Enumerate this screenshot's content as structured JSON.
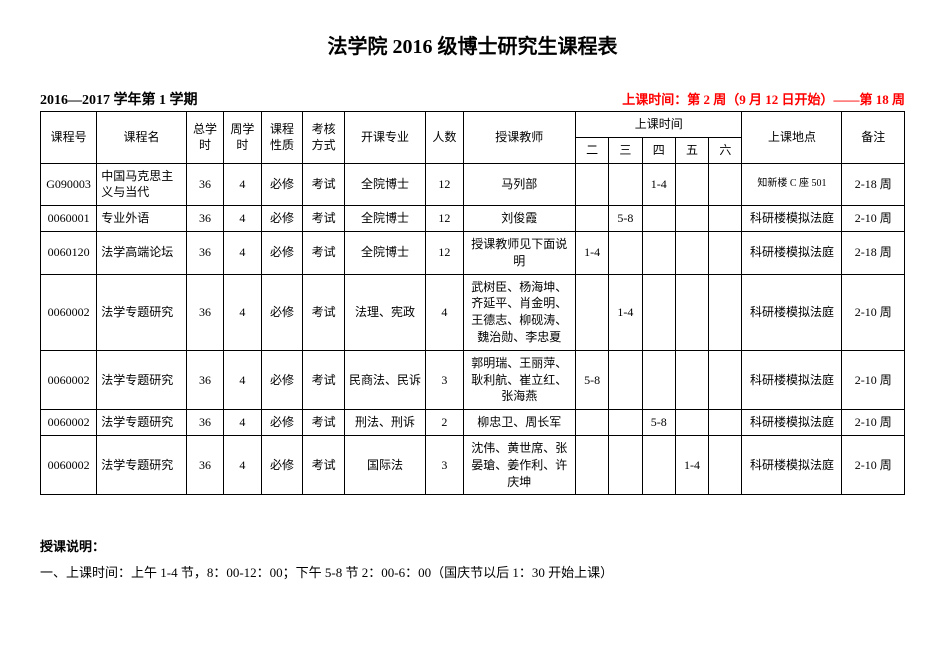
{
  "title": "法学院 2016 级博士研究生课程表",
  "semester": "2016—2017 学年第 1 学期",
  "period": "上课时间：第 2 周（9 月 12 日开始）——第 18 周",
  "columns": {
    "code": "课程号",
    "name": "课程名",
    "total_hours": "总学时",
    "week_hours": "周学时",
    "course_type": "课程性质",
    "exam_type": "考核方式",
    "major": "开课专业",
    "num": "人数",
    "teacher": "授课教师",
    "time_group": "上课时间",
    "day2": "二",
    "day3": "三",
    "day4": "四",
    "day5": "五",
    "day6": "六",
    "location": "上课地点",
    "remark": "备注"
  },
  "rows": [
    {
      "code": "G090003",
      "name": "中国马克思主义与当代",
      "total_hours": "36",
      "week_hours": "4",
      "course_type": "必修",
      "exam_type": "考试",
      "major": "全院博士",
      "num": "12",
      "teacher": "马列部",
      "d2": "",
      "d3": "",
      "d4": "1-4",
      "d5": "",
      "d6": "",
      "location": "知新楼 C 座 501",
      "location_small": true,
      "remark": "2-18 周"
    },
    {
      "code": "0060001",
      "name": "专业外语",
      "total_hours": "36",
      "week_hours": "4",
      "course_type": "必修",
      "exam_type": "考试",
      "major": "全院博士",
      "num": "12",
      "teacher": "刘俊霞",
      "d2": "",
      "d3": "5-8",
      "d4": "",
      "d5": "",
      "d6": "",
      "location": "科研楼模拟法庭",
      "remark": "2-10 周"
    },
    {
      "code": "0060120",
      "name": "法学高端论坛",
      "total_hours": "36",
      "week_hours": "4",
      "course_type": "必修",
      "exam_type": "考试",
      "major": "全院博士",
      "num": "12",
      "teacher": "授课教师见下面说明",
      "d2": "1-4",
      "d3": "",
      "d4": "",
      "d5": "",
      "d6": "",
      "location": "科研楼模拟法庭",
      "remark": "2-18 周"
    },
    {
      "code": "0060002",
      "name": "法学专题研究",
      "total_hours": "36",
      "week_hours": "4",
      "course_type": "必修",
      "exam_type": "考试",
      "major": "法理、宪政",
      "num": "4",
      "teacher": "武树臣、杨海坤、齐延平、肖金明、王德志、柳砚涛、魏治勋、李忠夏",
      "d2": "",
      "d3": "1-4",
      "d4": "",
      "d5": "",
      "d6": "",
      "location": "科研楼模拟法庭",
      "remark": "2-10 周"
    },
    {
      "code": "0060002",
      "name": "法学专题研究",
      "total_hours": "36",
      "week_hours": "4",
      "course_type": "必修",
      "exam_type": "考试",
      "major": "民商法、民诉",
      "num": "3",
      "teacher": "郭明瑞、王丽萍、耿利航、崔立红、张海燕",
      "d2": "5-8",
      "d3": "",
      "d4": "",
      "d5": "",
      "d6": "",
      "location": "科研楼模拟法庭",
      "remark": "2-10 周"
    },
    {
      "code": "0060002",
      "name": "法学专题研究",
      "total_hours": "36",
      "week_hours": "4",
      "course_type": "必修",
      "exam_type": "考试",
      "major": "刑法、刑诉",
      "num": "2",
      "teacher": "柳忠卫、周长军",
      "d2": "",
      "d3": "",
      "d4": "5-8",
      "d5": "",
      "d6": "",
      "location": "科研楼模拟法庭",
      "remark": "2-10 周"
    },
    {
      "code": "0060002",
      "name": "法学专题研究",
      "total_hours": "36",
      "week_hours": "4",
      "course_type": "必修",
      "exam_type": "考试",
      "major": "国际法",
      "num": "3",
      "teacher": "沈伟、黄世席、张晏瑲、姜作利、许庆坤",
      "d2": "",
      "d3": "",
      "d4": "",
      "d5": "1-4",
      "d6": "",
      "location": "科研楼模拟法庭",
      "remark": "2-10 周"
    }
  ],
  "notes": {
    "heading": "授课说明：",
    "line1": "一、上课时间：上午 1-4 节，8：00-12：00；下午 5-8 节 2：00-6：00（国庆节以后 1：30 开始上课）"
  }
}
